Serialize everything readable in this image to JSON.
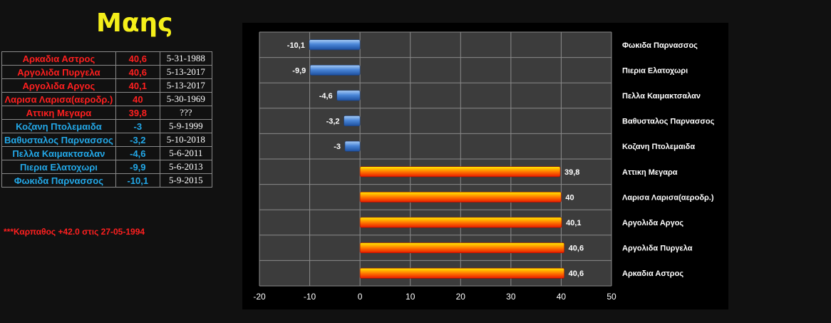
{
  "title": "Μαης",
  "records": [
    {
      "name": "Αρκαδια Αστρος",
      "value": "40,6",
      "date": "5-31-1988",
      "kind": "hot"
    },
    {
      "name": "Αργολιδα Πυργελα",
      "value": "40,6",
      "date": "5-13-2017",
      "kind": "hot"
    },
    {
      "name": "Αργολιδα Αργος",
      "value": "40,1",
      "date": "5-13-2017",
      "kind": "hot"
    },
    {
      "name": "Λαρισα Λαρισα(αεροδρ.)",
      "value": "40",
      "date": "5-30-1969",
      "kind": "hot"
    },
    {
      "name": "Αττικη Μεγαρα",
      "value": "39,8",
      "date": "???",
      "kind": "hot"
    },
    {
      "name": "Κοζανη Πτολεμαιδα",
      "value": "-3",
      "date": "5-9-1999",
      "kind": "cold"
    },
    {
      "name": "Βαθυσταλος Παρνασσος",
      "value": "-3,2",
      "date": "5-10-2018",
      "kind": "cold"
    },
    {
      "name": "Πελλα Καιμακτσαλαν",
      "value": "-4,6",
      "date": "5-6-2011",
      "kind": "cold"
    },
    {
      "name": "Πιερια Ελατοχωρι",
      "value": "-9,9",
      "date": "5-6-2013",
      "kind": "cold"
    },
    {
      "name": "Φωκιδα Παρνασσος",
      "value": "-10,1",
      "date": "5-9-2015",
      "kind": "cold"
    }
  ],
  "note": "***Καρπαθος +42.0 στις 27-05-1994",
  "colors": {
    "title": "#f5ef1a",
    "hot_text": "#ff1f1f",
    "cold_text": "#23a8e8",
    "plot_bg": "#3c3c3c",
    "grid": "#8a8a8a"
  },
  "chart_data": {
    "type": "bar",
    "orientation": "horizontal",
    "categories": [
      "Φωκιδα Παρνασσος",
      "Πιερια Ελατοχωρι",
      "Πελλα Καιμακτσαλαν",
      "Βαθυσταλος Παρνασσος",
      "Κοζανη Πτολεμαιδα",
      "Αττικη Μεγαρα",
      "Λαρισα Λαρισα(αεροδρ.)",
      "Αργολιδα Αργος",
      "Αργολιδα Πυργελα",
      "Αρκαδια Αστρος"
    ],
    "values": [
      -10.1,
      -9.9,
      -4.6,
      -3.2,
      -3,
      39.8,
      40,
      40.1,
      40.6,
      40.6
    ],
    "labels": [
      "-10,1",
      "-9,9",
      "-4,6",
      "-3,2",
      "-3",
      "39,8",
      "40",
      "40,1",
      "40,6",
      "40,6"
    ],
    "xlim": [
      -20,
      50
    ],
    "xticks": [
      -20,
      -10,
      0,
      10,
      20,
      30,
      40,
      50
    ],
    "category_labels_side": "right",
    "grid": true,
    "negative_bar_color": "#4a86d8",
    "positive_bar_colors": [
      "#ffea00",
      "#ff7a00",
      "#e81a00"
    ]
  }
}
